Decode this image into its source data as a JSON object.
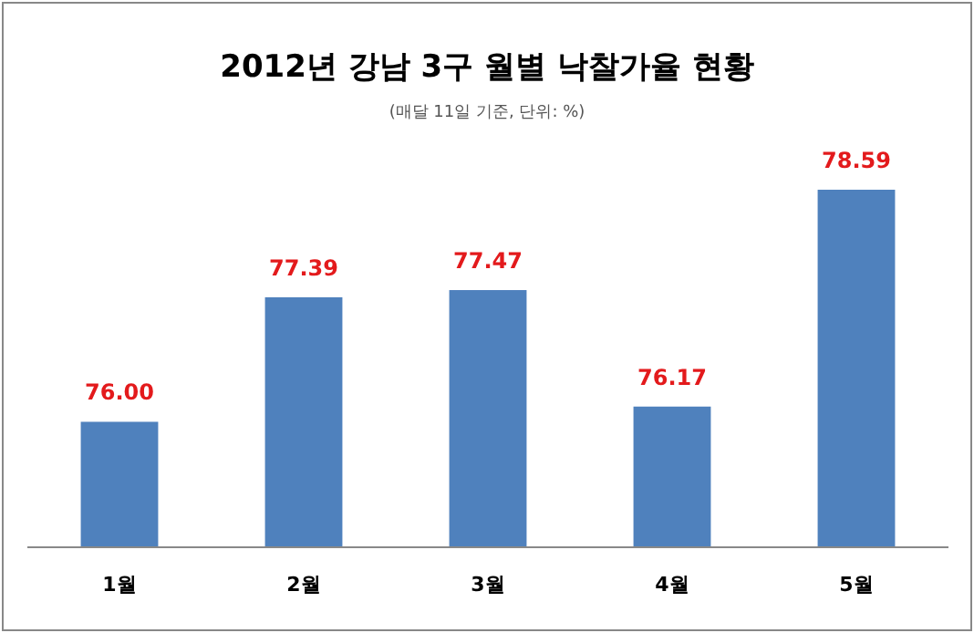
{
  "chart_data": {
    "type": "bar",
    "title": "2012년 강남 3구 월별 낙찰가율 현황",
    "subtitle": "(매달 11일 기준, 단위: %)",
    "categories": [
      "1월",
      "2월",
      "3월",
      "4월",
      "5월"
    ],
    "values": [
      76.0,
      77.39,
      77.47,
      76.17,
      78.59
    ],
    "value_labels": [
      "76.00",
      "77.39",
      "77.47",
      "76.17",
      "78.59"
    ],
    "color": "#4f81bd",
    "ylim": [
      74.6,
      78.59
    ],
    "tick_labels": "x"
  }
}
